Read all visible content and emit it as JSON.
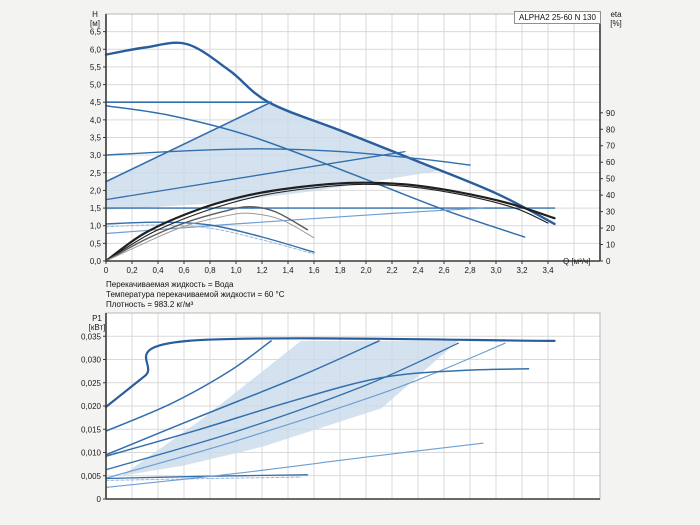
{
  "page": {
    "background": "#f3f3f1"
  },
  "title_box": {
    "label": "ALPHA2 25-60 N 130"
  },
  "axis_labels": {
    "h": "H\n[м]",
    "eta": "eta\n[%]",
    "p1": "P1\n[кВт]",
    "q": "Q [м³/ч]"
  },
  "notes": {
    "line1": "Перекачиваемая жидкость = Вода",
    "line2": "Температура перекачиваемой жидкости = 60 °C",
    "line3": "Плотность = 983.2 кг/м³"
  },
  "colors": {
    "page_bg": "#f3f3f1",
    "plot_bg": "#ffffff",
    "grid": "#d9d9d9",
    "box": "#b9b9b9",
    "axis": "#3a3a3a",
    "dark_blue": "#2a5d9c",
    "medium_blue": "#336fac",
    "light_blue": "#6f9ed2",
    "shade_blue": "#c9dbeb",
    "eta_black": "#1f1f1f",
    "eta_gray": "#5a5a5a",
    "text": "#1a1a1a"
  },
  "chart_data": [
    {
      "id": "hq",
      "type": "line",
      "title": "ALPHA2 25-60 N 130",
      "xlabel": "Q [м³/ч]",
      "ylabel": "H [м]",
      "y2label": "eta [%]",
      "xlim": [
        0,
        3.8
      ],
      "ylim": [
        0,
        7.0
      ],
      "y2lim": [
        0,
        150
      ],
      "x_grid_step": 0.2,
      "y_grid_step": 0.5,
      "grid": true,
      "legend": "none",
      "dark_axes": [
        "left",
        "bottom",
        "right"
      ],
      "x_ticks": [
        {
          "v": 0,
          "l": "0"
        },
        {
          "v": 0.2,
          "l": "0,2"
        },
        {
          "v": 0.4,
          "l": "0,4"
        },
        {
          "v": 0.6,
          "l": "0,6"
        },
        {
          "v": 0.8,
          "l": "0,8"
        },
        {
          "v": 1.0,
          "l": "1,0"
        },
        {
          "v": 1.2,
          "l": "1,2"
        },
        {
          "v": 1.4,
          "l": "1,4"
        },
        {
          "v": 1.6,
          "l": "1,6"
        },
        {
          "v": 1.8,
          "l": "1,8"
        },
        {
          "v": 2.0,
          "l": "2,0"
        },
        {
          "v": 2.2,
          "l": "2,2"
        },
        {
          "v": 2.4,
          "l": "2,4"
        },
        {
          "v": 2.6,
          "l": "2,6"
        },
        {
          "v": 2.8,
          "l": "2,8"
        },
        {
          "v": 3.0,
          "l": "3,0"
        },
        {
          "v": 3.2,
          "l": "3,2"
        },
        {
          "v": 3.4,
          "l": "3,4"
        }
      ],
      "y_ticks": [
        {
          "v": 0,
          "l": "0,0"
        },
        {
          "v": 0.5,
          "l": "0,5"
        },
        {
          "v": 1.0,
          "l": "1,0"
        },
        {
          "v": 1.5,
          "l": "1,5"
        },
        {
          "v": 2.0,
          "l": "2,0"
        },
        {
          "v": 2.5,
          "l": "2,5"
        },
        {
          "v": 3.0,
          "l": "3,0"
        },
        {
          "v": 3.5,
          "l": "3,5"
        },
        {
          "v": 4.0,
          "l": "4,0"
        },
        {
          "v": 4.5,
          "l": "4,5"
        },
        {
          "v": 5.0,
          "l": "5,0"
        },
        {
          "v": 5.5,
          "l": "5,5"
        },
        {
          "v": 6.0,
          "l": "6,0"
        },
        {
          "v": 6.5,
          "l": "6,5"
        }
      ],
      "y2_ticks": [
        {
          "v": 0,
          "l": "0"
        },
        {
          "v": 10,
          "l": "10"
        },
        {
          "v": 20,
          "l": "20"
        },
        {
          "v": 30,
          "l": "30"
        },
        {
          "v": 40,
          "l": "40"
        },
        {
          "v": 50,
          "l": "50"
        },
        {
          "v": 60,
          "l": "60"
        },
        {
          "v": 70,
          "l": "70"
        },
        {
          "v": 80,
          "l": "80"
        },
        {
          "v": 90,
          "l": "90"
        }
      ],
      "shade": {
        "name": "autoadapt-range",
        "color": "#c9dbeb",
        "opacity": 0.8,
        "points": [
          [
            0,
            2.25
          ],
          [
            1.27,
            4.5
          ],
          [
            1.8,
            3.7
          ],
          [
            2.4,
            2.82
          ],
          [
            2.55,
            2.55
          ],
          [
            1.6,
            1.98
          ],
          [
            0.8,
            1.62
          ],
          [
            0,
            1.45
          ]
        ]
      },
      "series": [
        {
          "name": "speed-3-max-curve",
          "axis": "left",
          "color": "#2a5d9c",
          "width": 2.4,
          "points": [
            [
              0,
              5.85
            ],
            [
              0.3,
              6.05
            ],
            [
              0.62,
              6.15
            ],
            [
              0.95,
              5.4
            ],
            [
              1.25,
              4.5
            ],
            [
              1.8,
              3.7
            ],
            [
              2.4,
              2.82
            ],
            [
              3.0,
              1.92
            ],
            [
              3.45,
              1.05
            ]
          ]
        },
        {
          "name": "speed-2-curve",
          "axis": "left",
          "color": "#336fac",
          "width": 1.5,
          "points": [
            [
              0,
              4.4
            ],
            [
              0.5,
              4.12
            ],
            [
              1.1,
              3.55
            ],
            [
              1.8,
              2.6
            ],
            [
              2.6,
              1.45
            ],
            [
              3.22,
              0.68
            ]
          ]
        },
        {
          "name": "mid-curve-3.0",
          "axis": "left",
          "color": "#336fac",
          "width": 1.4,
          "points": [
            [
              0,
              3.0
            ],
            [
              0.6,
              3.12
            ],
            [
              1.2,
              3.18
            ],
            [
              1.8,
              3.1
            ],
            [
              2.4,
              2.9
            ],
            [
              2.8,
              2.72
            ]
          ]
        },
        {
          "name": "cp-4.5-line",
          "axis": "left",
          "color": "#336fac",
          "width": 1.6,
          "points": [
            [
              0,
              4.5
            ],
            [
              1.27,
              4.5
            ]
          ]
        },
        {
          "name": "pp-4.5-line",
          "axis": "left",
          "color": "#336fac",
          "width": 1.6,
          "points": [
            [
              0,
              2.25
            ],
            [
              1.27,
              4.5
            ]
          ]
        },
        {
          "name": "pp-3.5-line",
          "axis": "left",
          "color": "#336fac",
          "width": 1.3,
          "points": [
            [
              0,
              1.74
            ],
            [
              2.3,
              3.1
            ]
          ]
        },
        {
          "name": "cp-1.5-line",
          "axis": "left",
          "color": "#336fac",
          "width": 1.4,
          "points": [
            [
              0,
              1.5
            ],
            [
              3.45,
              1.5
            ]
          ]
        },
        {
          "name": "pp-low-line",
          "axis": "left",
          "color": "#6f9ed2",
          "width": 1.2,
          "points": [
            [
              0,
              0.78
            ],
            [
              1.0,
              1.05
            ],
            [
              2.2,
              1.35
            ],
            [
              2.9,
              1.5
            ]
          ]
        },
        {
          "name": "speed-1-curve",
          "axis": "left",
          "color": "#336fac",
          "width": 1.4,
          "points": [
            [
              0,
              1.05
            ],
            [
              0.4,
              1.1
            ],
            [
              0.8,
              1.02
            ],
            [
              1.2,
              0.68
            ],
            [
              1.6,
              0.25
            ]
          ]
        },
        {
          "name": "speed-1-alt-curve",
          "axis": "left",
          "color": "#98b6d8",
          "width": 1,
          "dash": "3,2",
          "points": [
            [
              0,
              0.97
            ],
            [
              0.4,
              1.02
            ],
            [
              0.8,
              0.93
            ],
            [
              1.2,
              0.6
            ],
            [
              1.6,
              0.2
            ]
          ]
        },
        {
          "name": "eta-speed-3-curve",
          "axis": "right",
          "color": "#1f1f1f",
          "width": 2.2,
          "points": [
            [
              0,
              0
            ],
            [
              0.3,
              17
            ],
            [
              0.7,
              31
            ],
            [
              1.1,
              40
            ],
            [
              1.5,
              45
            ],
            [
              1.9,
              47.5
            ],
            [
              2.3,
              46.5
            ],
            [
              2.7,
              42
            ],
            [
              3.1,
              35
            ],
            [
              3.45,
              26
            ]
          ]
        },
        {
          "name": "eta-speed-3b-curve",
          "axis": "right",
          "color": "#1f1f1f",
          "width": 1.1,
          "points": [
            [
              0,
              0
            ],
            [
              0.35,
              17
            ],
            [
              0.75,
              30
            ],
            [
              1.15,
              39
            ],
            [
              1.55,
              44
            ],
            [
              1.95,
              46.5
            ],
            [
              2.35,
              45
            ],
            [
              2.75,
              40
            ],
            [
              3.15,
              32
            ],
            [
              3.4,
              23
            ]
          ]
        },
        {
          "name": "eta-speed-2-curve",
          "axis": "right",
          "color": "#5a5a5a",
          "width": 1.4,
          "points": [
            [
              0,
              0
            ],
            [
              0.3,
              13
            ],
            [
              0.6,
              23
            ],
            [
              0.9,
              30
            ],
            [
              1.1,
              33
            ],
            [
              1.3,
              30
            ],
            [
              1.55,
              19
            ]
          ]
        },
        {
          "name": "eta-speed-2b-curve",
          "axis": "right",
          "color": "#9a9a9a",
          "width": 1,
          "points": [
            [
              0,
              0
            ],
            [
              0.3,
              11
            ],
            [
              0.6,
              21
            ],
            [
              0.9,
              27
            ],
            [
              1.1,
              29
            ],
            [
              1.35,
              25
            ],
            [
              1.6,
              14
            ]
          ]
        }
      ]
    },
    {
      "id": "p1",
      "type": "line",
      "title": "",
      "xlabel": "Q [м³/ч]",
      "ylabel": "P1 [кВт]",
      "xlim": [
        0,
        3.8
      ],
      "ylim": [
        0,
        0.04
      ],
      "x_grid_step": 0.2,
      "y_grid_step": 0.005,
      "grid": true,
      "legend": "none",
      "dark_axes": [
        "left",
        "bottom"
      ],
      "x_ticks": [],
      "y_ticks": [
        {
          "v": 0,
          "l": "0"
        },
        {
          "v": 0.005,
          "l": "0,005"
        },
        {
          "v": 0.01,
          "l": "0,010"
        },
        {
          "v": 0.015,
          "l": "0,015"
        },
        {
          "v": 0.02,
          "l": "0,020"
        },
        {
          "v": 0.025,
          "l": "0,025"
        },
        {
          "v": 0.03,
          "l": "0,030"
        },
        {
          "v": 0.035,
          "l": "0,035"
        }
      ],
      "y2_ticks": [],
      "shade": {
        "name": "autoadapt-power-range",
        "color": "#c9dbeb",
        "opacity": 0.8,
        "points": [
          [
            0.12,
            0.005
          ],
          [
            0.73,
            0.017
          ],
          [
            1.5,
            0.034
          ],
          [
            2.71,
            0.034
          ],
          [
            2.12,
            0.0195
          ],
          [
            1.2,
            0.0112
          ],
          [
            0.6,
            0.0072
          ]
        ]
      },
      "series": [
        {
          "name": "p1-speed-3-max",
          "axis": "left",
          "color": "#2a5d9c",
          "width": 2.2,
          "points": [
            [
              0,
              0.0198
            ],
            [
              0.3,
              0.0265
            ],
            [
              0.63,
              0.034
            ],
            [
              3.45,
              0.034
            ]
          ]
        },
        {
          "name": "p1-cp-4.5",
          "axis": "left",
          "color": "#336fac",
          "width": 1.5,
          "points": [
            [
              0,
              0.0146
            ],
            [
              0.5,
              0.0205
            ],
            [
              0.95,
              0.0275
            ],
            [
              1.27,
              0.034
            ]
          ]
        },
        {
          "name": "p1-steep-2",
          "axis": "left",
          "color": "#336fac",
          "width": 1.5,
          "points": [
            [
              0,
              0.0095
            ],
            [
              0.7,
              0.0175
            ],
            [
              1.5,
              0.0265
            ],
            [
              2.1,
              0.034
            ]
          ]
        },
        {
          "name": "p1-diag-3",
          "axis": "left",
          "color": "#336fac",
          "width": 1.3,
          "points": [
            [
              0,
              0.0063
            ],
            [
              1.0,
              0.0145
            ],
            [
              2.0,
              0.0245
            ],
            [
              2.71,
              0.0335
            ]
          ]
        },
        {
          "name": "p1-diag-4",
          "axis": "left",
          "color": "#6f9ed2",
          "width": 1.2,
          "points": [
            [
              0,
              0.0045
            ],
            [
              1.0,
              0.0125
            ],
            [
              2.2,
              0.0235
            ],
            [
              3.07,
              0.0335
            ]
          ]
        },
        {
          "name": "p1-speed-2",
          "axis": "left",
          "color": "#336fac",
          "width": 1.5,
          "points": [
            [
              0,
              0.0092
            ],
            [
              0.7,
              0.0148
            ],
            [
              1.4,
              0.0208
            ],
            [
              2.1,
              0.026
            ],
            [
              2.7,
              0.0276
            ],
            [
              3.25,
              0.028
            ]
          ]
        },
        {
          "name": "p1-speed-1",
          "axis": "left",
          "color": "#336fac",
          "width": 1.3,
          "points": [
            [
              0,
              0.0044
            ],
            [
              0.8,
              0.0049
            ],
            [
              1.55,
              0.0052
            ]
          ]
        },
        {
          "name": "p1-speed-1-alt",
          "axis": "left",
          "color": "#98b6d8",
          "width": 1,
          "dash": "3,2",
          "points": [
            [
              0,
              0.004
            ],
            [
              0.8,
              0.0044
            ],
            [
              1.5,
              0.0047
            ]
          ]
        },
        {
          "name": "p1-low",
          "axis": "left",
          "color": "#6f9ed2",
          "width": 1.1,
          "points": [
            [
              0,
              0.0025
            ],
            [
              1.0,
              0.0055
            ],
            [
              2.0,
              0.009
            ],
            [
              2.9,
              0.012
            ]
          ]
        }
      ]
    }
  ]
}
